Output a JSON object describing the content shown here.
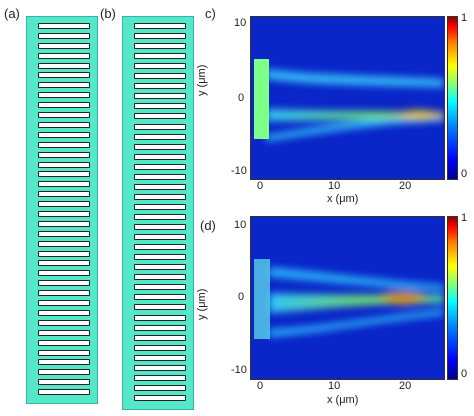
{
  "panels": {
    "a": {
      "label": "(a)",
      "slot_count": 38
    },
    "b": {
      "label": "(b)",
      "slot_count": 38
    },
    "c": {
      "label": "c)"
    },
    "d": {
      "label": "(d)"
    }
  },
  "plots": {
    "y_ticks": [
      "10",
      "0",
      "-10"
    ],
    "x_ticks": [
      "0",
      "10",
      "20"
    ],
    "xlabel": "x (μm)",
    "ylabel": "y (μm)",
    "colorbar_max": "1",
    "colorbar_min": "0"
  },
  "colors": {
    "metasurface": "#55e8c8",
    "field_background": "#0a25c8"
  }
}
